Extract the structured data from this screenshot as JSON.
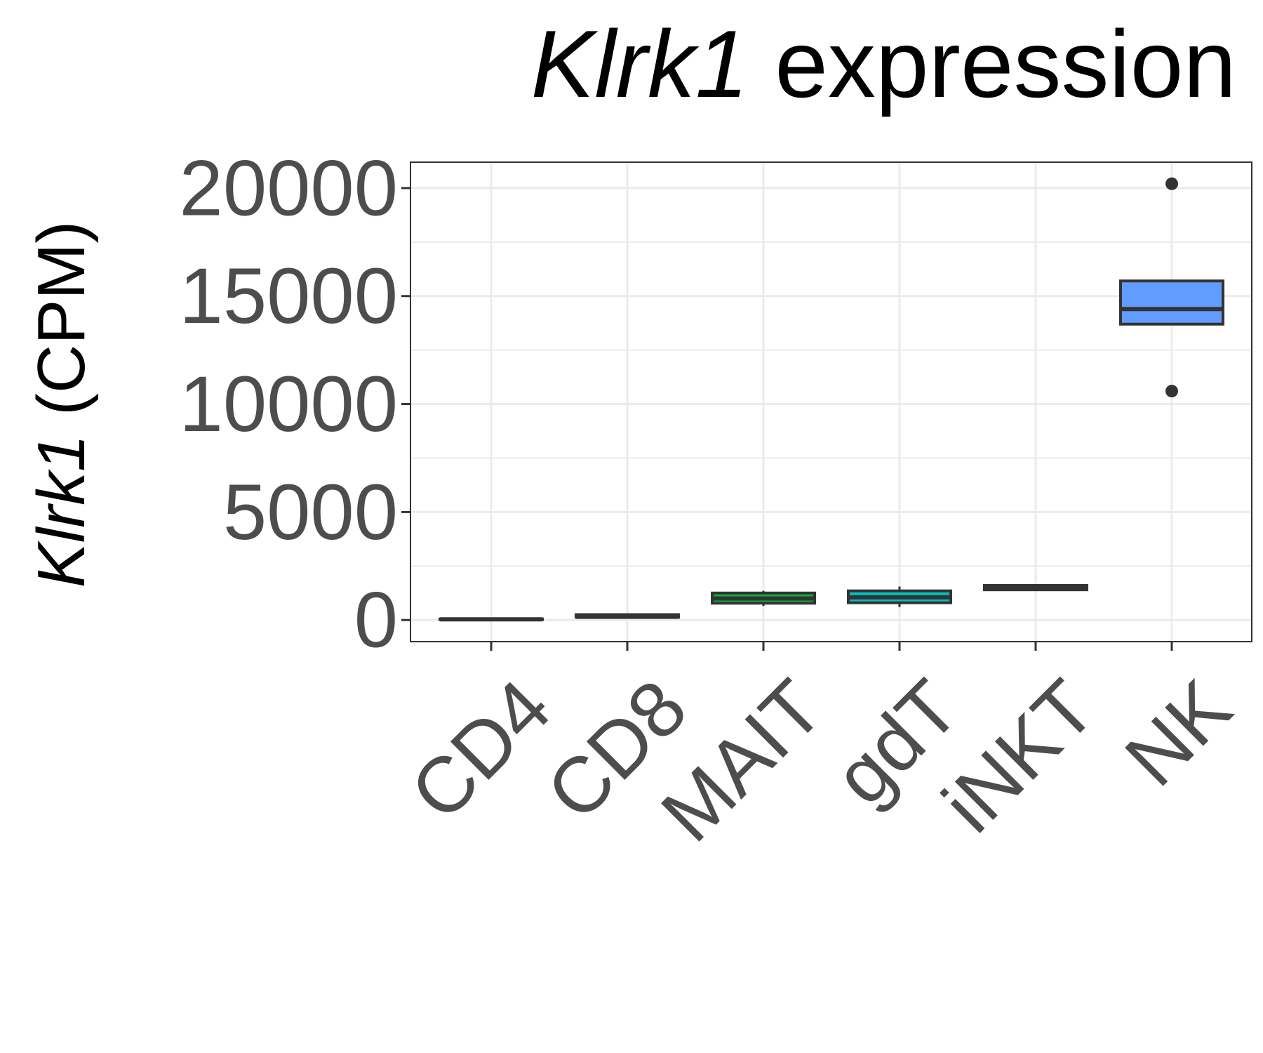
{
  "chart_data": {
    "type": "box",
    "title": {
      "gene": "Klrk1",
      "rest": " expression"
    },
    "ylabel": {
      "gene": "Klrk1",
      "rest": " (CPM)"
    },
    "xlabel": "",
    "ylim": [
      -1000,
      21200
    ],
    "yticks": [
      0,
      5000,
      10000,
      15000,
      20000
    ],
    "ytick_labels": [
      "0",
      "5000",
      "10000",
      "15000",
      "20000"
    ],
    "grid": true,
    "legend": "none",
    "categories": [
      "CD4",
      "CD8",
      "MAIT",
      "gdT",
      "iNKT",
      "NK"
    ],
    "boxes": [
      {
        "category": "CD4",
        "min": 10,
        "q1": 20,
        "median": 30,
        "q3": 50,
        "max": 60,
        "outliers": [],
        "fill": "#f8766d"
      },
      {
        "category": "CD8",
        "min": 110,
        "q1": 130,
        "median": 150,
        "q3": 250,
        "max": 270,
        "outliers": [],
        "fill": "#b79f00"
      },
      {
        "category": "MAIT",
        "min": 650,
        "q1": 780,
        "median": 1000,
        "q3": 1250,
        "max": 1350,
        "outliers": [],
        "fill": "#00ba38"
      },
      {
        "category": "gdT",
        "min": 600,
        "q1": 800,
        "median": 1050,
        "q3": 1350,
        "max": 1550,
        "outliers": [],
        "fill": "#00bfc4"
      },
      {
        "category": "iNKT",
        "min": 1380,
        "q1": 1400,
        "median": 1500,
        "q3": 1600,
        "max": 1650,
        "outliers": [],
        "fill": "#619cff"
      },
      {
        "category": "NK",
        "min": 13700,
        "q1": 13700,
        "median": 14400,
        "q3": 15700,
        "max": 15700,
        "outliers": [
          20200,
          10600
        ],
        "fill": "#619cff"
      }
    ]
  },
  "colors": {
    "panel_border": "#333333",
    "grid": "#ebebeb",
    "box_line": "#333333",
    "tick_text": "#4d4d4d"
  }
}
